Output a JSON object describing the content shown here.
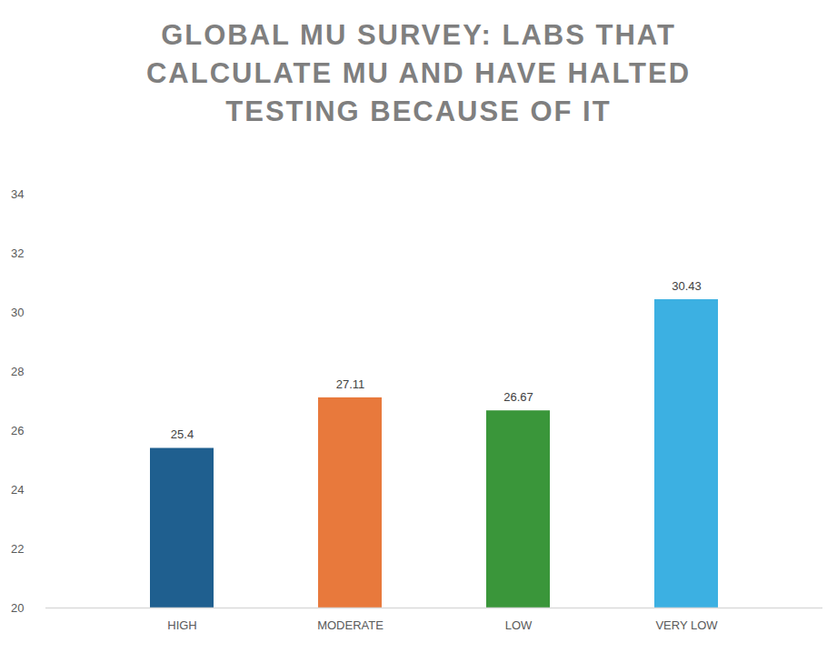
{
  "chart_data": {
    "type": "bar",
    "title": "GLOBAL MU SURVEY: LABS THAT CALCULATE MU AND HAVE HALTED TESTING BECAUSE OF IT",
    "categories": [
      "HIGH",
      "MODERATE",
      "LOW",
      "VERY LOW"
    ],
    "values": [
      25.4,
      27.11,
      26.67,
      30.43
    ],
    "colors": [
      "#1f5f8f",
      "#e8793c",
      "#3a963a",
      "#3cb0e2"
    ],
    "ylim": [
      20,
      34
    ],
    "yticks": [
      20,
      22,
      24,
      26,
      28,
      30,
      32,
      34
    ],
    "data_labels": true,
    "grid": false
  }
}
